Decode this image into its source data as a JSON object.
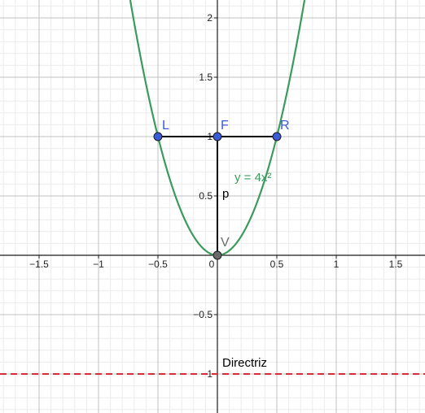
{
  "chart_data": {
    "type": "line",
    "xlim": [
      -1.83,
      1.75
    ],
    "ylim": [
      -1.33,
      2.15
    ],
    "x_ticks": [
      -1.5,
      -1,
      -0.5,
      0,
      0.5,
      1,
      1.5
    ],
    "x_tick_labels": [
      "−1.5",
      "−1",
      "−0.5",
      "0",
      "0.5",
      "1",
      "1.5"
    ],
    "y_ticks": [
      -1,
      -0.5,
      0.5,
      1,
      1.5,
      2
    ],
    "y_tick_labels": [
      "−1",
      "−0.5",
      "0.5",
      "1",
      "1.5",
      "2"
    ],
    "grid": true,
    "minor_grid": true,
    "curve": {
      "label": "y = 4x²",
      "coefficient": 4,
      "color": "#3a9b5c"
    },
    "directrix": {
      "label": "Directriz",
      "y": -1,
      "color": "#d62d3a"
    },
    "latus_rectum": {
      "color": "#000000",
      "from": [
        -0.5,
        1
      ],
      "to": [
        0.5,
        1
      ]
    },
    "p_segment": {
      "label": "p",
      "color": "#000000",
      "from": [
        0,
        0
      ],
      "to": [
        0,
        1
      ]
    },
    "points": [
      {
        "label": "L",
        "x": -0.5,
        "y": 1,
        "color": "#3a5bd8",
        "label_color": "#3a5bd8"
      },
      {
        "label": "F",
        "x": 0,
        "y": 1,
        "color": "#3a5bd8",
        "label_color": "#3a5bd8"
      },
      {
        "label": "R",
        "x": 0.5,
        "y": 1,
        "color": "#3a5bd8",
        "label_color": "#3a5bd8"
      },
      {
        "label": "V",
        "x": 0,
        "y": 0,
        "color": "#6b6b6b",
        "label_color": "#6b6b6b"
      }
    ]
  }
}
